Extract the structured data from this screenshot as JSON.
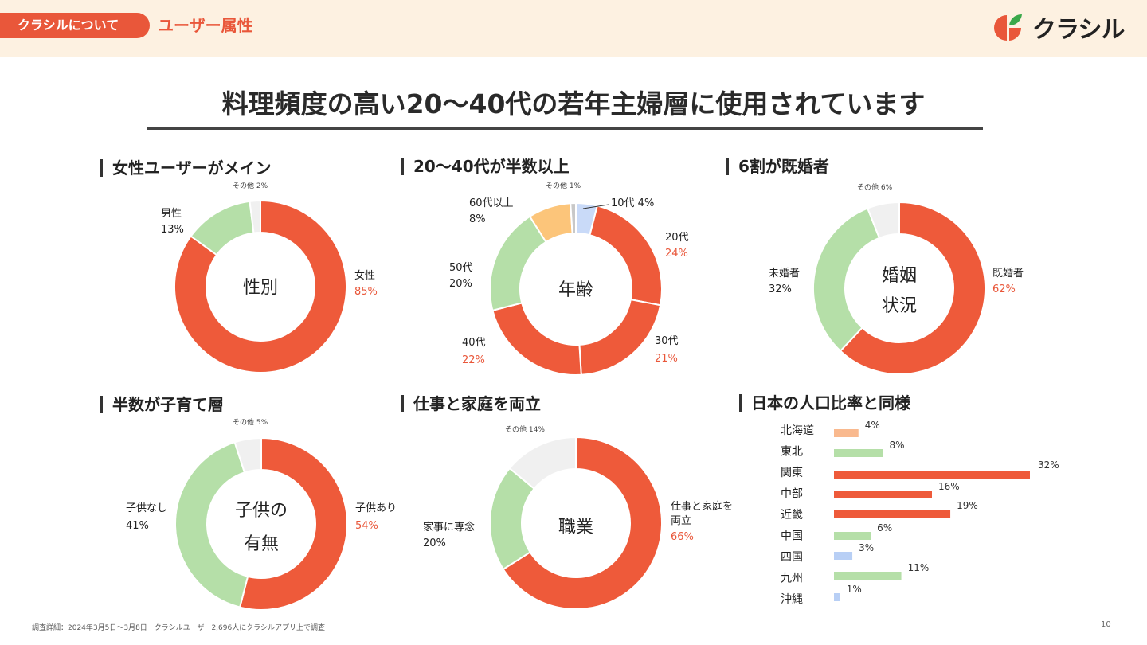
{
  "header": {
    "breadcrumb_section": "クラシルについて",
    "breadcrumb_page": "ユーザー属性",
    "logo_text": "クラシル",
    "colors": {
      "background": "#fdf1e1",
      "accent": "#e9573a",
      "leaf": "#3aa84a"
    }
  },
  "main_title": "料理頻度の高い20〜40代の若年主婦層に使用されています",
  "colors": {
    "red": "#ee5a3a",
    "green": "#b5dfa8",
    "gray": "#f0f0f0",
    "gray_dark": "#c8c8c8",
    "orange": "#fcc57a",
    "blue": "#c9daf8",
    "bar_peach": "#f9b98e",
    "bar_blue": "#b8cff5",
    "pct_red": "#e9573a"
  },
  "chart_data": [
    {
      "type": "pie",
      "id": "gender",
      "title": "女性ユーザーがメイン",
      "center_label": [
        "性別"
      ],
      "slices": [
        {
          "label": "女性",
          "value": 85,
          "pct_text": "85%",
          "color_key": "red",
          "highlight": true
        },
        {
          "label": "男性",
          "value": 13,
          "pct_text": "13%",
          "color_key": "green",
          "highlight": false
        },
        {
          "label": "その他",
          "value": 2,
          "pct_text": "2%",
          "color_key": "gray",
          "highlight": false,
          "small": true
        }
      ]
    },
    {
      "type": "pie",
      "id": "age",
      "title": "20〜40代が半数以上",
      "center_label": [
        "年齢"
      ],
      "slices": [
        {
          "label": "10代",
          "value": 4,
          "pct_text": "4%",
          "color_key": "blue",
          "highlight": false,
          "inline": true
        },
        {
          "label": "20代",
          "value": 24,
          "pct_text": "24%",
          "color_key": "red",
          "highlight": true
        },
        {
          "label": "30代",
          "value": 21,
          "pct_text": "21%",
          "color_key": "red",
          "highlight": true
        },
        {
          "label": "40代",
          "value": 22,
          "pct_text": "22%",
          "color_key": "red",
          "highlight": true
        },
        {
          "label": "50代",
          "value": 20,
          "pct_text": "20%",
          "color_key": "green",
          "highlight": false
        },
        {
          "label": "60代以上",
          "value": 8,
          "pct_text": "8%",
          "color_key": "orange",
          "highlight": false
        },
        {
          "label": "その他",
          "value": 1,
          "pct_text": "1%",
          "color_key": "gray_dark",
          "highlight": false,
          "small": true
        }
      ]
    },
    {
      "type": "pie",
      "id": "marital",
      "title": "6割が既婚者",
      "center_label": [
        "婚姻",
        "状況"
      ],
      "slices": [
        {
          "label": "既婚者",
          "value": 62,
          "pct_text": "62%",
          "color_key": "red",
          "highlight": true
        },
        {
          "label": "未婚者",
          "value": 32,
          "pct_text": "32%",
          "color_key": "green",
          "highlight": false
        },
        {
          "label": "その他",
          "value": 6,
          "pct_text": "6%",
          "color_key": "gray",
          "highlight": false,
          "small": true
        }
      ]
    },
    {
      "type": "pie",
      "id": "children",
      "title": "半数が子育て層",
      "center_label": [
        "子供の",
        "有無"
      ],
      "slices": [
        {
          "label": "子供あり",
          "value": 54,
          "pct_text": "54%",
          "color_key": "red",
          "highlight": true
        },
        {
          "label": "子供なし",
          "value": 41,
          "pct_text": "41%",
          "color_key": "green",
          "highlight": false
        },
        {
          "label": "その他",
          "value": 5,
          "pct_text": "5%",
          "color_key": "gray",
          "highlight": false,
          "small": true
        }
      ]
    },
    {
      "type": "pie",
      "id": "occupation",
      "title": "仕事と家庭を両立",
      "center_label": [
        "職業"
      ],
      "slices": [
        {
          "label": "仕事と家庭を両立",
          "label_lines": [
            "仕事と家庭を",
            "両立"
          ],
          "value": 66,
          "pct_text": "66%",
          "color_key": "red",
          "highlight": true
        },
        {
          "label": "家事に専念",
          "value": 20,
          "pct_text": "20%",
          "color_key": "green",
          "highlight": false
        },
        {
          "label": "その他",
          "value": 14,
          "pct_text": "14%",
          "color_key": "gray",
          "highlight": false,
          "small": true
        }
      ]
    },
    {
      "type": "bar",
      "id": "region",
      "orientation": "horizontal",
      "title": "日本の人口比率と同様",
      "categories": [
        "北海道",
        "東北",
        "関東",
        "中部",
        "近畿",
        "中国",
        "四国",
        "九州",
        "沖縄"
      ],
      "bars": [
        {
          "value": 4,
          "label": "4%",
          "color_key": "bar_peach"
        },
        {
          "value": 8,
          "label": "8%",
          "color_key": "green"
        },
        {
          "value": 32,
          "label": "32%",
          "color_key": "red"
        },
        {
          "value": 16,
          "label": "16%",
          "color_key": "red"
        },
        {
          "value": 19,
          "label": "19%",
          "color_key": "red"
        },
        {
          "value": 6,
          "label": "6%",
          "color_key": "green"
        },
        {
          "value": 3,
          "label": "3%",
          "color_key": "bar_blue"
        },
        {
          "value": 11,
          "label": "11%",
          "color_key": "green"
        },
        {
          "value": 1,
          "label": "1%",
          "color_key": "bar_blue"
        }
      ],
      "xlim": [
        0,
        32
      ]
    }
  ],
  "footer": {
    "note": "調査詳細：2024年3月5日〜3月8日　クラシルユーザー2,696人にクラシルアプリ上で調査",
    "page_number": "10"
  }
}
